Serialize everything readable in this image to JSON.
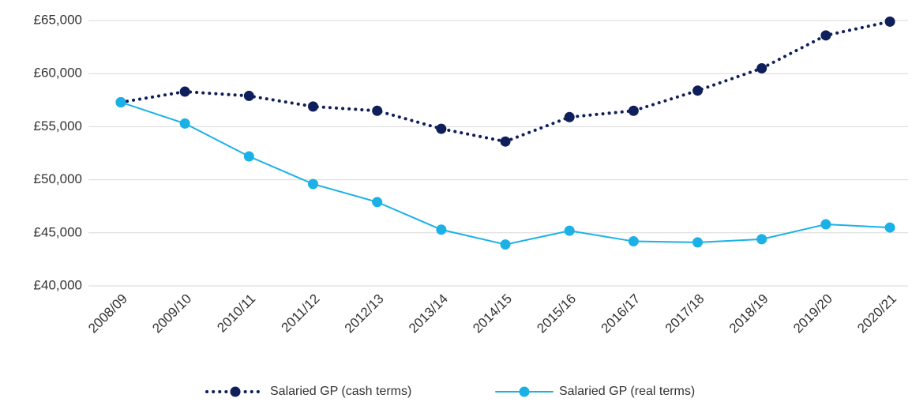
{
  "chart_data": {
    "type": "line",
    "categories": [
      "2008/09",
      "2009/10",
      "2010/11",
      "2011/12",
      "2012/13",
      "2013/14",
      "2014/15",
      "2015/16",
      "2016/17",
      "2017/18",
      "2018/19",
      "2019/20",
      "2020/21"
    ],
    "series": [
      {
        "name": "Salaried GP (cash terms)",
        "color": "#0f1f5c",
        "dash": "dotted",
        "values": [
          57300,
          58300,
          57900,
          56900,
          56500,
          54800,
          53600,
          55900,
          56500,
          58400,
          60500,
          63600,
          64900
        ]
      },
      {
        "name": "Salaried GP (real terms)",
        "color": "#1bb1e7",
        "dash": "solid",
        "values": [
          57300,
          55300,
          52200,
          49600,
          47900,
          45300,
          43900,
          45200,
          44200,
          44100,
          44400,
          45800,
          45500
        ]
      }
    ],
    "ylim": [
      40000,
      65000
    ],
    "yticks": [
      {
        "value": 40000,
        "label": "£40,000"
      },
      {
        "value": 45000,
        "label": "£45,000"
      },
      {
        "value": 50000,
        "label": "£50,000"
      },
      {
        "value": 55000,
        "label": "£55,000"
      },
      {
        "value": 60000,
        "label": "£60,000"
      },
      {
        "value": 65000,
        "label": "£65,000"
      }
    ],
    "grid": true,
    "legend": "bottom"
  }
}
